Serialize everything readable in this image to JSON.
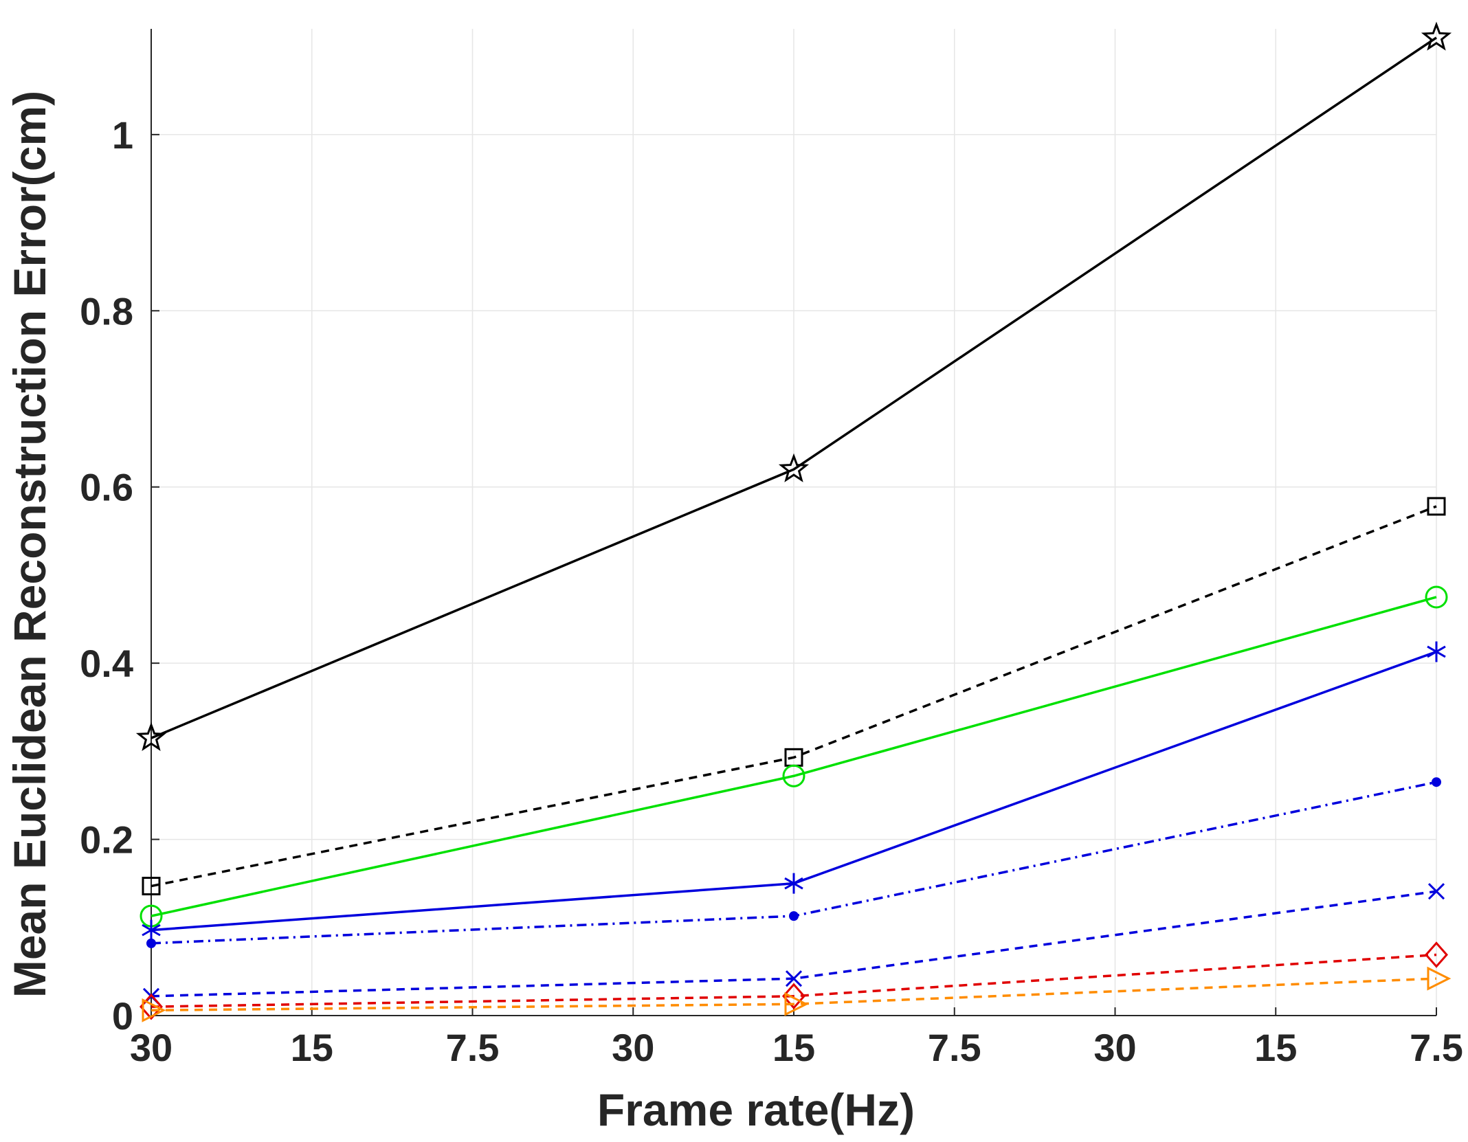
{
  "chart_data": {
    "type": "line",
    "title": "",
    "xlabel": "Frame rate(Hz)",
    "ylabel": "Mean Euclidean Reconstruction Error(cm)",
    "x_tick_labels": [
      "30",
      "15",
      "7.5",
      "30",
      "15",
      "7.5",
      "30",
      "15",
      "7.5"
    ],
    "y_ticks": [
      0,
      0.2,
      0.4,
      0.6,
      0.8,
      1
    ],
    "y_tick_labels": [
      "0",
      "0.2",
      "0.4",
      "0.6",
      "0.8",
      "1"
    ],
    "ylim": [
      0,
      1.12
    ],
    "grid": true,
    "x_points": [
      "30",
      "15",
      "7.5"
    ],
    "series": [
      {
        "values": [
          0.315,
          0.62,
          1.11
        ],
        "color": "#000000",
        "line": "solid",
        "marker": "star"
      },
      {
        "values": [
          0.147,
          0.293,
          0.578
        ],
        "color": "#000000",
        "line": "dashed",
        "marker": "square"
      },
      {
        "values": [
          0.113,
          0.272,
          0.475
        ],
        "color": "#00e000",
        "line": "solid",
        "marker": "circle"
      },
      {
        "values": [
          0.097,
          0.15,
          0.413
        ],
        "color": "#0000dd",
        "line": "solid",
        "marker": "asterisk"
      },
      {
        "values": [
          0.082,
          0.113,
          0.265
        ],
        "color": "#0000dd",
        "line": "dashdot",
        "marker": "dot"
      },
      {
        "values": [
          0.022,
          0.042,
          0.141
        ],
        "color": "#0000dd",
        "line": "dashed",
        "marker": "x"
      },
      {
        "values": [
          0.01,
          0.022,
          0.069
        ],
        "color": "#e00000",
        "line": "dashed",
        "marker": "diamond"
      },
      {
        "values": [
          0.006,
          0.013,
          0.042
        ],
        "color": "#ff8c00",
        "line": "dashed",
        "marker": "triangle-right"
      }
    ]
  }
}
